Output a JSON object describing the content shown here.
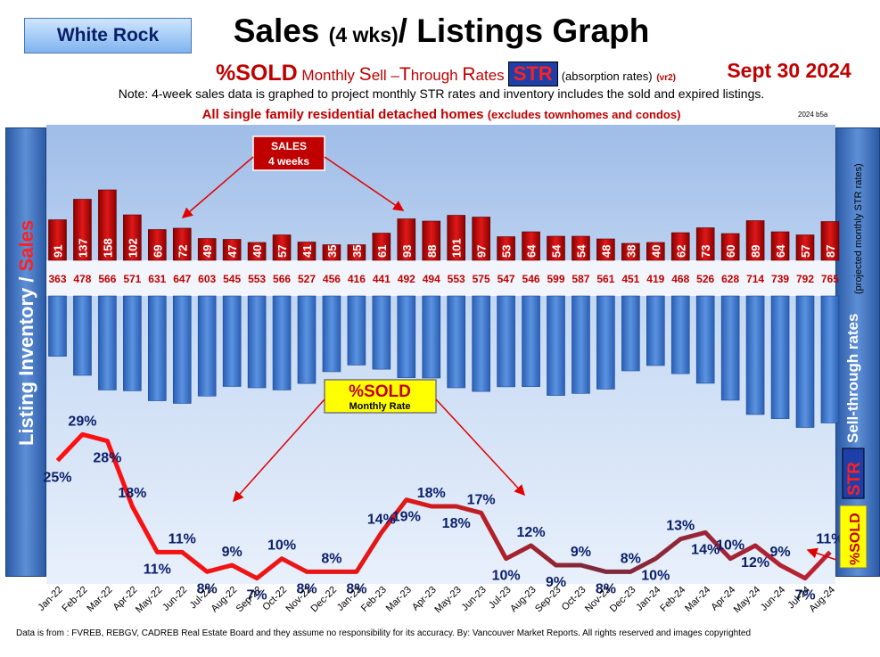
{
  "header": {
    "region": "White Rock",
    "title_main": "Sales",
    "title_small": "(4 wks)",
    "title_tail": "/ Listings Graph",
    "date": "Sept  30  2024",
    "version": "2024 b5a"
  },
  "subtitle": {
    "sold": "%SOLD",
    "w1": "Monthly",
    "s_cap": "S",
    "s_rest": "ell –",
    "t_cap": "T",
    "t_rest": "hrough",
    "r_cap": "R",
    "r_rest": "ates",
    "str": "STR",
    "absorption": "(absorption rates)",
    "vr": "(vr2)"
  },
  "note": "Note: 4-week sales data is graphed to project monthly STR rates and inventory includes the sold and expired listings.",
  "scope": {
    "main": "All single family residential detached homes",
    "paren": "(excludes townhomes and condos)"
  },
  "callouts": {
    "sales_line1": "SALES",
    "sales_line2": "4  weeks",
    "sold_line1": "%SOLD",
    "sold_line2": "Monthly Rate"
  },
  "side_labels": {
    "left_listing": "Listing Inventory",
    "left_slash": " / ",
    "left_sales": "Sales",
    "right_main": "Sell-through rates",
    "right_sub": "(projected monthly STR rates)",
    "right_str": "STR",
    "right_sold": "%SOLD"
  },
  "footer": "Data is from : FVREB, REBGV, CADREB Real Estate Board and they assume no responsibility for its accuracy. By: Vancouver Market Reports. All rights reserved and  images copyrighted",
  "colors": {
    "sales_bar": "#c00000",
    "listing_bar": "#3f78cf",
    "sold_line": "#e01010",
    "sold_line_dark": "#7a2a3c",
    "label_navy": "#0a1f6a"
  },
  "chart_data": {
    "type": "bar",
    "categories": [
      "Jan-22",
      "Feb-22",
      "Mar-22",
      "Apr-22",
      "May-22",
      "Jun-22",
      "Jul-22",
      "Aug-22",
      "Sep-22",
      "Oct-22",
      "Nov-22",
      "Dec-22",
      "Jan-23",
      "Feb-23",
      "Mar-23",
      "Apr-23",
      "May-23",
      "Jun-23",
      "Jul-23",
      "Aug-23",
      "Sep-23",
      "Oct-23",
      "Nov-23",
      "Dec-23",
      "Jan-24",
      "Feb-24",
      "Mar-24",
      "Apr-24",
      "May-24",
      "Jun-24",
      "Jul-24",
      "Aug-24"
    ],
    "series": [
      {
        "values": [
          91,
          137,
          158,
          102,
          69,
          72,
          49,
          47,
          40,
          57,
          41,
          35,
          35,
          61,
          93,
          88,
          101,
          97,
          53,
          64,
          54,
          54,
          48,
          38,
          40,
          62,
          73,
          60,
          89,
          64,
          57,
          87
        ]
      },
      {
        "values": [
          363,
          478,
          566,
          571,
          631,
          647,
          603,
          545,
          553,
          566,
          527,
          456,
          416,
          441,
          492,
          494,
          553,
          575,
          547,
          546,
          599,
          587,
          561,
          451,
          419,
          468,
          526,
          628,
          714,
          739,
          792,
          765
        ]
      },
      {
        "values": [
          25,
          29,
          28,
          18,
          11,
          11,
          8,
          9,
          7,
          10,
          8,
          8,
          8,
          14,
          19,
          18,
          18,
          17,
          10,
          12,
          9,
          9,
          8,
          8,
          10,
          13,
          14,
          10,
          12,
          9,
          7,
          11
        ]
      }
    ],
    "sold_labels": [
      "25%",
      "29%",
      "28%",
      "18%",
      "11%",
      "11%",
      "8%",
      "9%",
      "7%",
      "10%",
      "8%",
      "8%",
      "8%",
      "14%",
      "19%",
      "18%",
      "18%",
      "17%",
      "10%",
      "12%",
      "9%",
      "9%",
      "8%",
      "8%",
      "10%",
      "13%",
      "14%",
      "10%",
      "12%",
      "9%",
      "7%",
      "11%"
    ],
    "sales_ylim": [
      0,
      160
    ],
    "listings_ylim": [
      0,
      800
    ],
    "sold_ylim": [
      0,
      30
    ]
  }
}
